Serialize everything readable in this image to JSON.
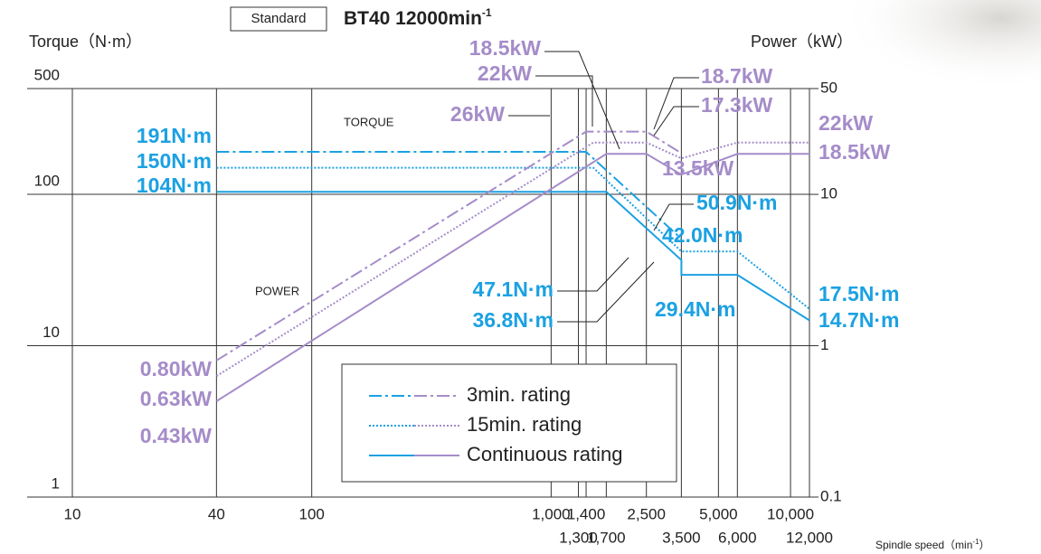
{
  "chart_data": {
    "type": "line",
    "badge": "Standard",
    "title": [
      "BT40 12000min",
      "-1"
    ],
    "ylabel": "Torque（N·m）",
    "y2label": "Power（kW）",
    "xlabel": [
      "Spindle speed（min",
      "-1",
      "）"
    ],
    "xscale": "log",
    "yscale": "log",
    "xlim": [
      10,
      12000
    ],
    "ylim": [
      1,
      500
    ],
    "y2lim": [
      0.1,
      50
    ],
    "xticks": [
      10,
      40,
      100,
      {
        "value": 1000,
        "label": "1,000"
      },
      {
        "value": 1400,
        "label": "1,400"
      },
      {
        "value": 2500,
        "label": "2,500"
      },
      {
        "value": 5000,
        "label": "5,000"
      },
      {
        "value": 10000,
        "label": "10,000"
      }
    ],
    "xticks2": [
      {
        "value": 1300,
        "label": "1,300"
      },
      {
        "value": 1700,
        "label": "1,700"
      },
      {
        "value": 3500,
        "label": "3,500"
      },
      {
        "value": 6000,
        "label": "6,000"
      },
      {
        "value": 12000,
        "label": "12,000"
      }
    ],
    "yticks": [
      1,
      10,
      100,
      500
    ],
    "y2ticks": [
      0.1,
      1,
      10,
      50
    ],
    "grid": true,
    "series": [
      {
        "name": "3min. rating",
        "color": "#1ba1e2",
        "dash": "dashdot",
        "x": [
          40,
          1400,
          3500
        ],
        "values": [
          191,
          191,
          50.9
        ]
      },
      {
        "name": "15min. rating",
        "color": "#1ba1e2",
        "dash": "dotted",
        "x": [
          40,
          1500,
          3500,
          6000,
          12000
        ],
        "values": [
          150,
          150,
          42.0,
          42.0,
          17.5
        ]
      },
      {
        "name": "Continuous rating",
        "color": "#1ba1e2",
        "dash": "solid",
        "x": [
          40,
          1700,
          3500,
          3500,
          6000,
          12000
        ],
        "values": [
          104,
          104,
          36.8,
          29.4,
          29.4,
          14.7
        ]
      },
      {
        "axis": "y2",
        "color": "#a58cc9",
        "dash": "dashdot",
        "x": [
          40,
          1400,
          2500,
          3500
        ],
        "values": [
          0.8,
          26,
          26,
          18.7
        ]
      },
      {
        "axis": "y2",
        "color": "#a58cc9",
        "dash": "dotted",
        "x": [
          40,
          1500,
          2500,
          3500,
          6000,
          12000
        ],
        "values": [
          0.63,
          22,
          22,
          17.3,
          22,
          22
        ]
      },
      {
        "axis": "y2",
        "color": "#a58cc9",
        "dash": "solid",
        "x": [
          40,
          1700,
          2500,
          3500,
          6000,
          12000
        ],
        "values": [
          0.43,
          18.5,
          18.5,
          13.5,
          18.5,
          18.5
        ]
      }
    ],
    "curve_labels": [
      "TORQUE",
      "POWER"
    ],
    "annotations": [
      {
        "text": "191N·m",
        "color": "#1ba1e2"
      },
      {
        "text": "150N·m",
        "color": "#1ba1e2"
      },
      {
        "text": "104N·m",
        "color": "#1ba1e2"
      },
      {
        "text": "0.80kW",
        "color": "#a58cc9"
      },
      {
        "text": "0.63kW",
        "color": "#a58cc9"
      },
      {
        "text": "0.43kW",
        "color": "#a58cc9"
      },
      {
        "text": "18.5kW",
        "color": "#a58cc9"
      },
      {
        "text": "22kW",
        "color": "#a58cc9"
      },
      {
        "text": "26kW",
        "color": "#a58cc9"
      },
      {
        "text": "18.7kW",
        "color": "#a58cc9"
      },
      {
        "text": "17.3kW",
        "color": "#a58cc9"
      },
      {
        "text": "13.5kW",
        "color": "#a58cc9"
      },
      {
        "text": "22kW",
        "color": "#a58cc9"
      },
      {
        "text": "18.5kW",
        "color": "#a58cc9"
      },
      {
        "text": "50.9N·m",
        "color": "#1ba1e2"
      },
      {
        "text": "42.0N·m",
        "color": "#1ba1e2"
      },
      {
        "text": "47.1N·m",
        "color": "#1ba1e2"
      },
      {
        "text": "36.8N·m",
        "color": "#1ba1e2"
      },
      {
        "text": "29.4N·m",
        "color": "#1ba1e2"
      },
      {
        "text": "17.5N·m",
        "color": "#1ba1e2"
      },
      {
        "text": "14.7N·m",
        "color": "#1ba1e2"
      }
    ]
  }
}
